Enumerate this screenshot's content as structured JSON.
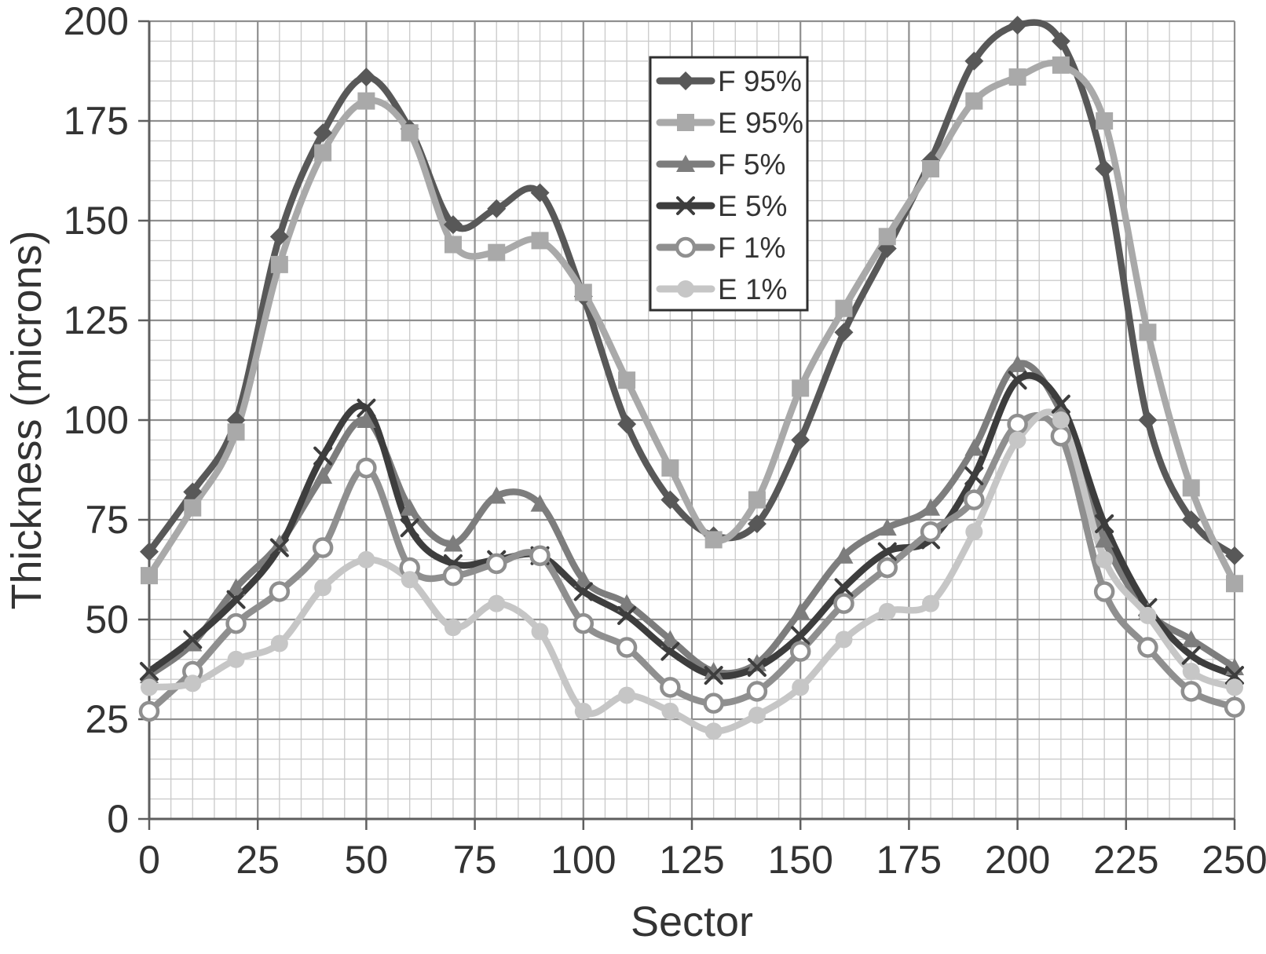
{
  "figure": {
    "background": "#ffffff",
    "text_color": "#333333",
    "grid_minor_color": "#cccccc",
    "grid_major_color": "#8f8f8f",
    "axis_color": "#5e5e5e",
    "legend_border_color": "#2f2f2f"
  },
  "chart_data": {
    "type": "line",
    "title": "",
    "xlabel": "Sector",
    "ylabel": "Thickness (microns)",
    "xlim": [
      0,
      250
    ],
    "ylim": [
      0,
      200
    ],
    "x_major_ticks": [
      0,
      25,
      50,
      75,
      100,
      125,
      150,
      175,
      200,
      225,
      250
    ],
    "y_major_ticks": [
      0,
      25,
      50,
      75,
      100,
      125,
      150,
      175,
      200
    ],
    "x_tick_labels": [
      "0",
      "25",
      "50",
      "75",
      "100",
      "125",
      "150",
      "175",
      "200",
      "225",
      "250"
    ],
    "y_tick_labels": [
      "0",
      "25",
      "50",
      "75",
      "100",
      "125",
      "150",
      "175",
      "200"
    ],
    "minor_grid_step": 5,
    "grid": "major+minor",
    "legend_position": "inside-top-center",
    "x": [
      0,
      10,
      20,
      30,
      40,
      50,
      60,
      70,
      80,
      90,
      100,
      110,
      120,
      130,
      140,
      150,
      160,
      170,
      180,
      190,
      200,
      210,
      220,
      230,
      240,
      250
    ],
    "series": [
      {
        "name": "F 95%",
        "marker": "diamond-icon",
        "color": "#585858",
        "values": [
          67,
          82,
          100,
          146,
          172,
          186,
          173,
          149,
          153,
          157,
          131,
          99,
          80,
          71,
          74,
          95,
          122,
          143,
          165,
          190,
          199,
          195,
          163,
          100,
          75,
          66
        ]
      },
      {
        "name": "E 95%",
        "marker": "square-icon",
        "color": "#a9a9a9",
        "values": [
          61,
          78,
          97,
          139,
          167,
          180,
          172,
          144,
          142,
          145,
          132,
          110,
          88,
          70,
          80,
          108,
          128,
          146,
          163,
          180,
          186,
          189,
          175,
          122,
          83,
          59
        ]
      },
      {
        "name": "F 5%",
        "marker": "triangle-icon",
        "color": "#7d7d7d",
        "values": [
          36,
          44,
          58,
          69,
          86,
          100,
          78,
          69,
          81,
          79,
          60,
          54,
          45,
          37,
          39,
          52,
          66,
          73,
          78,
          93,
          114,
          102,
          70,
          52,
          45,
          38
        ]
      },
      {
        "name": "E 5%",
        "marker": "x-cross-icon",
        "color": "#3d3d3d",
        "values": [
          37,
          45,
          55,
          68,
          91,
          103,
          73,
          64,
          65,
          66,
          57,
          51,
          42,
          36,
          38,
          46,
          58,
          67,
          70,
          86,
          110,
          104,
          74,
          53,
          41,
          36
        ]
      },
      {
        "name": "F 1%",
        "marker": "circle-open-icon",
        "color": "#8f8f8f",
        "values": [
          27,
          37,
          49,
          57,
          68,
          88,
          63,
          61,
          64,
          66,
          49,
          43,
          33,
          29,
          32,
          42,
          54,
          63,
          72,
          80,
          99,
          96,
          57,
          43,
          32,
          28
        ]
      },
      {
        "name": "E 1%",
        "marker": "circle-filled-icon",
        "color": "#c6c6c6",
        "values": [
          33,
          34,
          40,
          44,
          58,
          65,
          60,
          48,
          54,
          47,
          27,
          31,
          27,
          22,
          26,
          33,
          45,
          52,
          54,
          72,
          95,
          100,
          65,
          51,
          37,
          33
        ]
      }
    ]
  }
}
